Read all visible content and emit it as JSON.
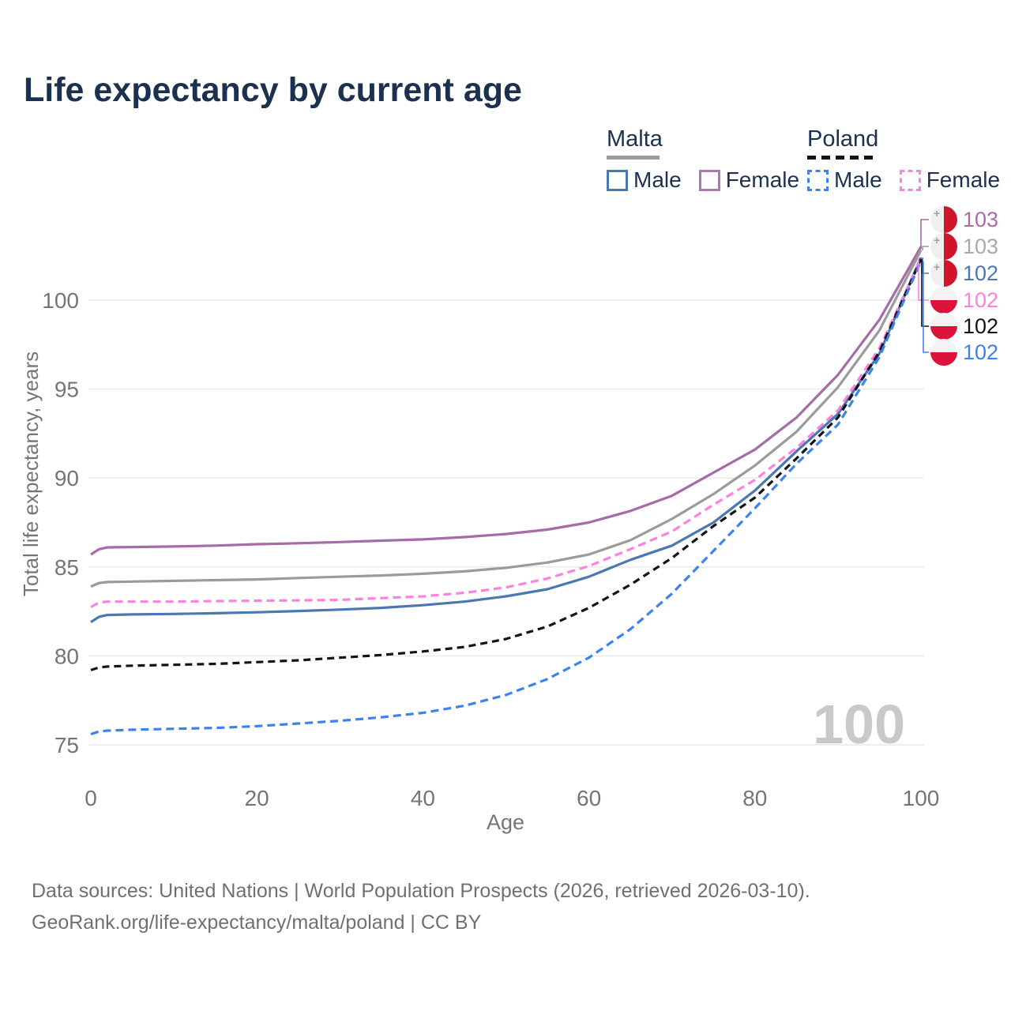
{
  "title": "Life expectancy by current age",
  "legend": {
    "groups": [
      {
        "id": "malta",
        "label": "Malta",
        "line_style": "solid",
        "line_color": "#9b9b9b",
        "items": [
          {
            "label": "Male",
            "color": "#4b77b3",
            "dash": false
          },
          {
            "label": "Female",
            "color": "#b077b0",
            "dash": false
          }
        ]
      },
      {
        "id": "poland",
        "label": "Poland",
        "line_style": "dashed",
        "line_color": "#141414",
        "items": [
          {
            "label": "Male",
            "color": "#3c82f0",
            "dash": true
          },
          {
            "label": "Female",
            "color": "#ff80df",
            "dash": true
          }
        ]
      }
    ]
  },
  "axes": {
    "x_label": "Age",
    "y_label": "Total life expectancy, years"
  },
  "watermark": "100",
  "footer": {
    "line1": "Data sources: United Nations | World Population Prospects (2026, retrieved 2026-03-10).",
    "line2": "GeoRank.org/life-expectancy/malta/poland | CC BY"
  },
  "end_labels": [
    {
      "value": "103",
      "color": "#a76ba8",
      "flag": "malta"
    },
    {
      "value": "103",
      "color": "#a9a9a9",
      "flag": "malta"
    },
    {
      "value": "102",
      "color": "#4b77b3",
      "flag": "malta"
    },
    {
      "value": "102",
      "color": "#ff80df",
      "flag": "poland"
    },
    {
      "value": "102",
      "color": "#141414",
      "flag": "poland"
    },
    {
      "value": "102",
      "color": "#3c82f0",
      "flag": "poland"
    }
  ],
  "chart_data": {
    "type": "line",
    "title": "Life expectancy by current age",
    "xlabel": "Age",
    "ylabel": "Total life expectancy, years",
    "xlim": [
      0,
      100
    ],
    "ylim": [
      74,
      104
    ],
    "x_ticks": [
      0,
      20,
      40,
      60,
      80,
      100
    ],
    "y_ticks": [
      75,
      80,
      85,
      90,
      95,
      100
    ],
    "grid": "horizontal",
    "legend_position": "top-right",
    "ages": [
      0,
      1,
      2,
      5,
      10,
      15,
      20,
      25,
      30,
      35,
      40,
      45,
      50,
      55,
      60,
      65,
      70,
      75,
      80,
      85,
      90,
      95,
      100
    ],
    "series": [
      {
        "name": "Malta Female",
        "country": "Malta",
        "sex": "Female",
        "color": "#a76ba8",
        "dash": null,
        "values": [
          85.7,
          86.0,
          86.1,
          86.12,
          86.15,
          86.2,
          86.28,
          86.33,
          86.4,
          86.48,
          86.55,
          86.68,
          86.85,
          87.1,
          87.5,
          88.15,
          89.0,
          90.3,
          91.6,
          93.4,
          95.8,
          98.9,
          103.0
        ],
        "end_label": "103"
      },
      {
        "name": "Malta",
        "country": "Malta",
        "sex": "Both",
        "color": "#9b9b9b",
        "dash": null,
        "values": [
          83.9,
          84.1,
          84.15,
          84.18,
          84.22,
          84.26,
          84.3,
          84.38,
          84.45,
          84.52,
          84.62,
          84.75,
          84.95,
          85.25,
          85.7,
          86.5,
          87.7,
          89.1,
          90.7,
          92.6,
          95.1,
          98.3,
          102.8
        ],
        "end_label": "103"
      },
      {
        "name": "Malta Male",
        "country": "Malta",
        "sex": "Male",
        "color": "#4b77b3",
        "dash": null,
        "values": [
          81.9,
          82.2,
          82.3,
          82.33,
          82.36,
          82.4,
          82.45,
          82.52,
          82.6,
          82.7,
          82.85,
          83.05,
          83.35,
          83.75,
          84.45,
          85.4,
          86.2,
          87.5,
          89.3,
          91.5,
          93.6,
          97.0,
          102.4
        ],
        "end_label": "102"
      },
      {
        "name": "Poland Female",
        "country": "Poland",
        "sex": "Female",
        "color": "#ff80df",
        "dash": "10 6",
        "values": [
          82.75,
          83.0,
          83.05,
          83.05,
          83.05,
          83.08,
          83.1,
          83.12,
          83.15,
          83.25,
          83.35,
          83.55,
          83.85,
          84.35,
          85.05,
          86.0,
          87.0,
          88.5,
          89.9,
          91.7,
          93.8,
          97.3,
          102.35
        ],
        "end_label": "102"
      },
      {
        "name": "Poland",
        "country": "Poland",
        "sex": "Both",
        "color": "#141414",
        "dash": "9 6",
        "values": [
          79.2,
          79.35,
          79.4,
          79.45,
          79.5,
          79.55,
          79.65,
          79.75,
          79.9,
          80.05,
          80.25,
          80.5,
          80.95,
          81.65,
          82.7,
          84.0,
          85.5,
          87.3,
          88.9,
          91.1,
          93.4,
          97.1,
          102.3
        ],
        "end_label": "102"
      },
      {
        "name": "Poland Male",
        "country": "Poland",
        "sex": "Male",
        "color": "#3c82f0",
        "dash": "10 6",
        "values": [
          75.6,
          75.75,
          75.8,
          75.85,
          75.9,
          75.95,
          76.05,
          76.2,
          76.35,
          76.55,
          76.8,
          77.2,
          77.8,
          78.7,
          79.9,
          81.5,
          83.5,
          85.9,
          88.3,
          90.8,
          93.0,
          96.8,
          102.2
        ],
        "end_label": "102"
      }
    ]
  }
}
